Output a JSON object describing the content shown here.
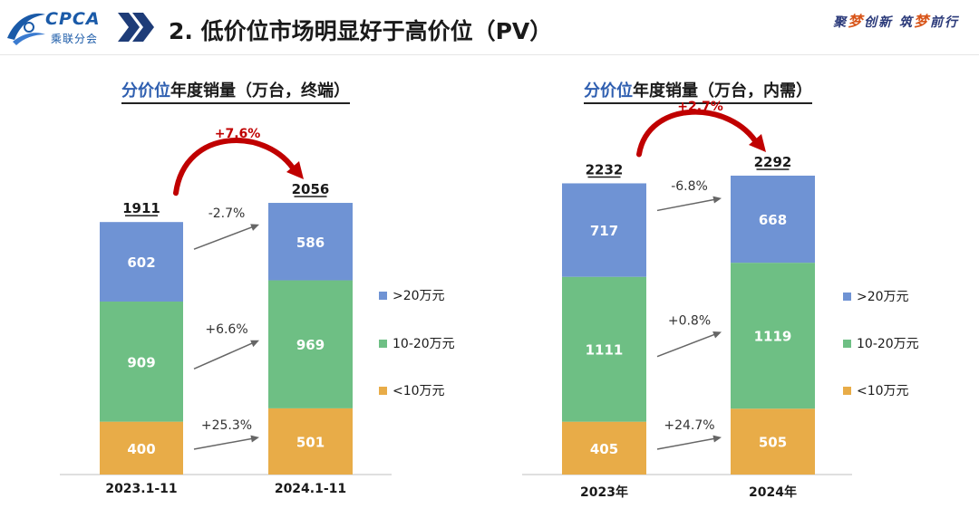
{
  "header": {
    "logo_text": "CPCA",
    "logo_subtext": "乘联分会",
    "title": "2. 低价位市场明显好于高价位（PV）",
    "slogan_parts": [
      "聚",
      "梦",
      "创新 筑",
      "梦",
      "前行"
    ]
  },
  "colors": {
    "low": "#e8ac48",
    "mid": "#6ebf84",
    "high": "#6f93d4",
    "growth_text": "#c00000",
    "arrow_red": "#c00000",
    "arrow_gray": "#666666"
  },
  "chart_data": [
    {
      "type": "bar",
      "stacked": true,
      "title_highlight": "分价位",
      "title_rest": "年度销量（万台，终端）",
      "categories": [
        "2023.1-11",
        "2024.1-11"
      ],
      "series": [
        {
          "name": "<10万元",
          "values": [
            400,
            501
          ]
        },
        {
          "name": "10-20万元",
          "values": [
            909,
            969
          ]
        },
        {
          "name": ">20万元",
          "values": [
            602,
            586
          ]
        }
      ],
      "totals": [
        1911,
        2056
      ],
      "total_growth": "+7.6%",
      "segment_growth": [
        "+25.3%",
        "+6.6%",
        "-2.7%"
      ],
      "legend": [
        ">20万元",
        "10-20万元",
        "<10万元"
      ]
    },
    {
      "type": "bar",
      "stacked": true,
      "title_highlight": "分价位",
      "title_rest": "年度销量（万台，内需）",
      "categories": [
        "2023年",
        "2024年"
      ],
      "series": [
        {
          "name": "<10万元",
          "values": [
            405,
            505
          ]
        },
        {
          "name": "10-20万元",
          "values": [
            1111,
            1119
          ]
        },
        {
          "name": ">20万元",
          "values": [
            717,
            668
          ]
        }
      ],
      "totals": [
        2232,
        2292
      ],
      "total_growth": "+2.7%",
      "segment_growth": [
        "+24.7%",
        "+0.8%",
        "-6.8%"
      ],
      "legend": [
        ">20万元",
        "10-20万元",
        "<10万元"
      ]
    }
  ]
}
